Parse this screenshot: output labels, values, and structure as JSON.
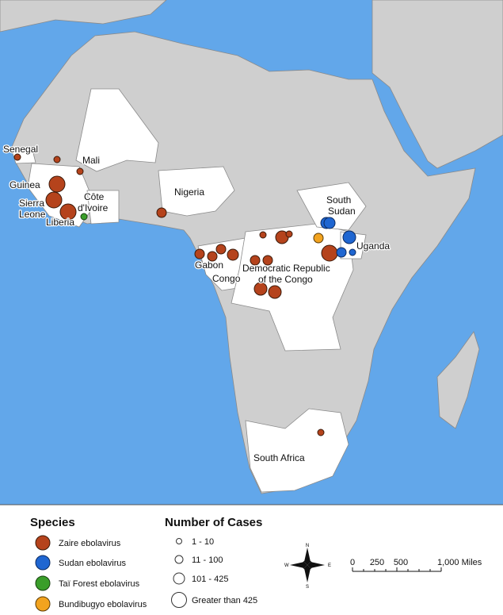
{
  "map": {
    "country_labels": [
      [
        "Senegal"
      ],
      [
        "Mali"
      ],
      [
        "Guinea"
      ],
      [
        "Sierra",
        "Leone"
      ],
      [
        "Liberia"
      ],
      [
        "Côte",
        "d'Ivoire"
      ],
      [
        "Nigeria"
      ],
      [
        "Gabon"
      ],
      [
        "Congo"
      ],
      [
        "Democratic Republic",
        "of the Congo"
      ],
      [
        "South",
        "Sudan"
      ],
      [
        "Uganda"
      ],
      [
        "South Africa"
      ]
    ]
  },
  "legend": {
    "species_title": "Species",
    "species": [
      "Zaire ebolavirus",
      "Sudan ebolavirus",
      "Taï Forest ebolavirus",
      "Bundibugyo ebolavirus"
    ],
    "cases_title": "Number of Cases",
    "cases": [
      "1 - 10",
      "11 - 100",
      "101 - 425",
      "Greater than 425"
    ]
  },
  "compass": [
    "N",
    "E",
    "S",
    "W"
  ],
  "scale": [
    "0",
    "250",
    "500",
    "1,000 Miles"
  ]
}
